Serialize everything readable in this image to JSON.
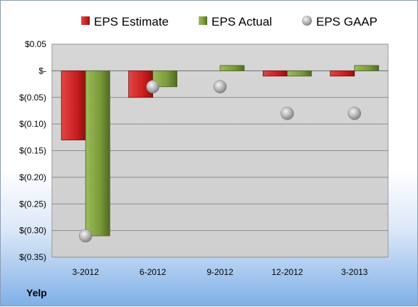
{
  "chart_data": {
    "type": "bar",
    "categories": [
      "3-2012",
      "6-2012",
      "9-2012",
      "12-2012",
      "3-2013"
    ],
    "series": [
      {
        "name": "EPS Estimate",
        "kind": "bar",
        "color": "#cc1f1f",
        "values": [
          -0.13,
          -0.05,
          null,
          -0.01,
          -0.01
        ]
      },
      {
        "name": "EPS Actual",
        "kind": "bar",
        "color": "#7a9a3a",
        "values": [
          -0.31,
          -0.03,
          0.01,
          -0.01,
          0.01
        ]
      },
      {
        "name": "EPS GAAP",
        "kind": "marker",
        "color": "#a8a8a8",
        "values": [
          -0.31,
          -0.03,
          -0.03,
          -0.08,
          -0.08
        ]
      }
    ],
    "y_ticks": [
      {
        "value": 0.05,
        "label": "$0.05"
      },
      {
        "value": 0,
        "label": "$-"
      },
      {
        "value": -0.05,
        "label": "$(0.05)"
      },
      {
        "value": -0.1,
        "label": "$(0.10)"
      },
      {
        "value": -0.15,
        "label": "$(0.15)"
      },
      {
        "value": -0.2,
        "label": "$(0.20)"
      },
      {
        "value": -0.25,
        "label": "$(0.25)"
      },
      {
        "value": -0.3,
        "label": "$(0.30)"
      },
      {
        "value": -0.35,
        "label": "$(0.35)"
      }
    ],
    "ylim": [
      -0.35,
      0.05
    ],
    "grid": true,
    "legend_position": "top"
  },
  "footer": {
    "company": "Yelp"
  }
}
